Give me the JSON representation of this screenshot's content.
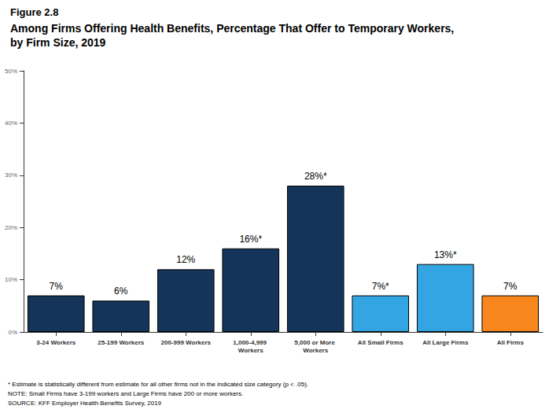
{
  "chart_data": {
    "type": "bar",
    "title": "Figure 2.8",
    "subtitle": "Among Firms Offering Health Benefits, Percentage That Offer to Temporary Workers, by Firm Size, 2019",
    "categories": [
      "3-24 Workers",
      "25-199 Workers",
      "200-999 Workers",
      "1,000-4,999 Workers",
      "5,000 or More Workers",
      "All Small Firms",
      "All Large Firms",
      "All Firms"
    ],
    "values": [
      7,
      6,
      12,
      16,
      28,
      7,
      13,
      7
    ],
    "value_labels": [
      "7%",
      "6%",
      "12%",
      "16%*",
      "28%*",
      "7%*",
      "13%*",
      "7%"
    ],
    "colors": [
      "#14345a",
      "#14345a",
      "#14345a",
      "#14345a",
      "#14345a",
      "#33a5e2",
      "#33a5e2",
      "#f7861c"
    ],
    "ylim": [
      0,
      50
    ],
    "yticks": [
      {
        "value": 0,
        "label": "0%"
      },
      {
        "value": 10,
        "label": "10%"
      },
      {
        "value": 20,
        "label": "20%"
      },
      {
        "value": 30,
        "label": "30%"
      },
      {
        "value": 40,
        "label": "40%"
      },
      {
        "value": 50,
        "label": "50%"
      }
    ],
    "grid": false,
    "data_labels": true,
    "annotations": [
      "* Estimate is statistically different from estimate for all other firms not in the indicated size category (p < .05).",
      "NOTE: Small Firms have 3-199 workers and Large Firms have 200 or more workers.",
      "SOURCE: KFF Employer Health Benefits Survey, 2019"
    ]
  }
}
